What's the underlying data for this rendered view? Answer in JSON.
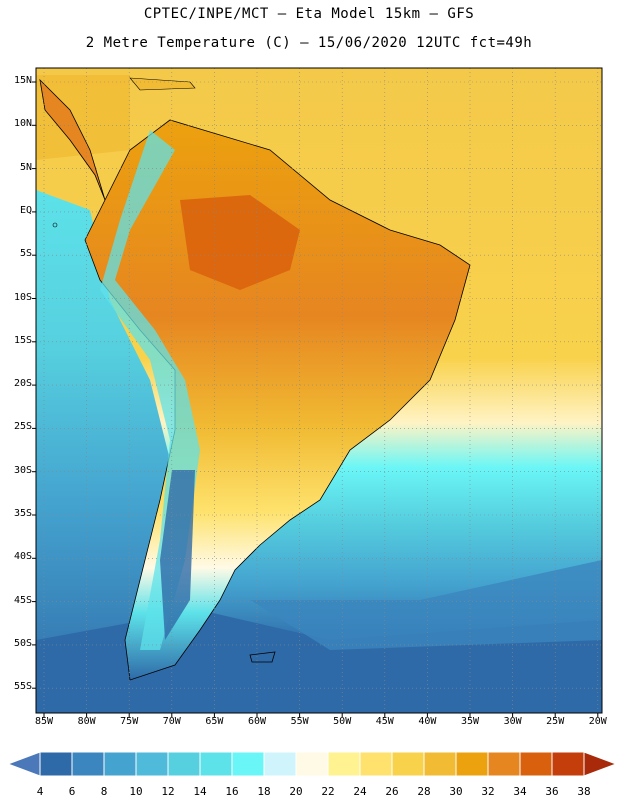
{
  "title": {
    "line1": "CPTEC/INPE/MCT –  Eta Model 15km – GFS",
    "line2": "2 Metre Temperature (C) – 15/06/2020 12UTC fct=49h"
  },
  "latitude_labels": [
    "15N",
    "10N",
    "5N",
    "EQ",
    "5S",
    "10S",
    "15S",
    "20S",
    "25S",
    "30S",
    "35S",
    "40S",
    "45S",
    "50S",
    "55S"
  ],
  "longitude_labels": [
    "85W",
    "80W",
    "75W",
    "70W",
    "65W",
    "60W",
    "55W",
    "50W",
    "45W",
    "40W",
    "35W",
    "30W",
    "25W",
    "20W"
  ],
  "colorbar": {
    "labels": [
      "4",
      "6",
      "8",
      "10",
      "12",
      "14",
      "16",
      "18",
      "20",
      "22",
      "24",
      "26",
      "28",
      "30",
      "32",
      "34",
      "36",
      "38"
    ],
    "colors": [
      "#4a78b8",
      "#2f6aa8",
      "#3b86be",
      "#44a3cf",
      "#4fbad9",
      "#56d0df",
      "#5de2e9",
      "#6af6f6",
      "#cff4fb",
      "#fffae6",
      "#fff291",
      "#fee26d",
      "#f9d24c",
      "#f1bb33",
      "#eca10e",
      "#e68620",
      "#d9600c",
      "#c33e0a",
      "#a82a0a"
    ]
  },
  "field_colors": {
    "ocean_south_dark": "#2f5fa0",
    "ocean_mid": "#44a3cf",
    "ocean_light": "#56d0df",
    "ocean_warm": "#f9d24c",
    "land_hot": "#e68620"
  }
}
